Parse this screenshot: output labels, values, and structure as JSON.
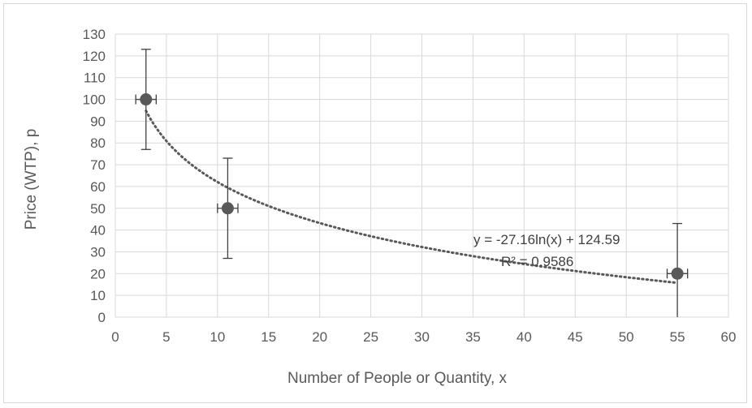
{
  "chart_data": {
    "type": "scatter",
    "title": "",
    "xlabel": "Number of People or Quantity, x",
    "ylabel": "Price (WTP), p",
    "xlim": [
      0,
      60
    ],
    "ylim": [
      0,
      130
    ],
    "x_ticks": [
      0,
      5,
      10,
      15,
      20,
      25,
      30,
      35,
      40,
      45,
      50,
      55,
      60
    ],
    "y_ticks": [
      0,
      10,
      20,
      30,
      40,
      50,
      60,
      70,
      80,
      90,
      100,
      110,
      120,
      130
    ],
    "grid": true,
    "legend": false,
    "points": [
      {
        "x": 3,
        "y": 100,
        "y_err": 23,
        "x_err": 1
      },
      {
        "x": 11,
        "y": 50,
        "y_err": 23,
        "x_err": 1
      },
      {
        "x": 55,
        "y": 20,
        "y_err": 23,
        "x_err": 1
      }
    ],
    "trendline": {
      "type": "logarithmic",
      "a": -27.16,
      "b": 124.59,
      "x_range": [
        3,
        55
      ],
      "equation": "y = -27.16ln(x) + 124.59",
      "r_squared": "R² = 0.9586"
    },
    "colors": {
      "marker": "#595959",
      "trendline": "#595959",
      "grid": "#d9d9d9",
      "axis_text": "#595959"
    }
  }
}
